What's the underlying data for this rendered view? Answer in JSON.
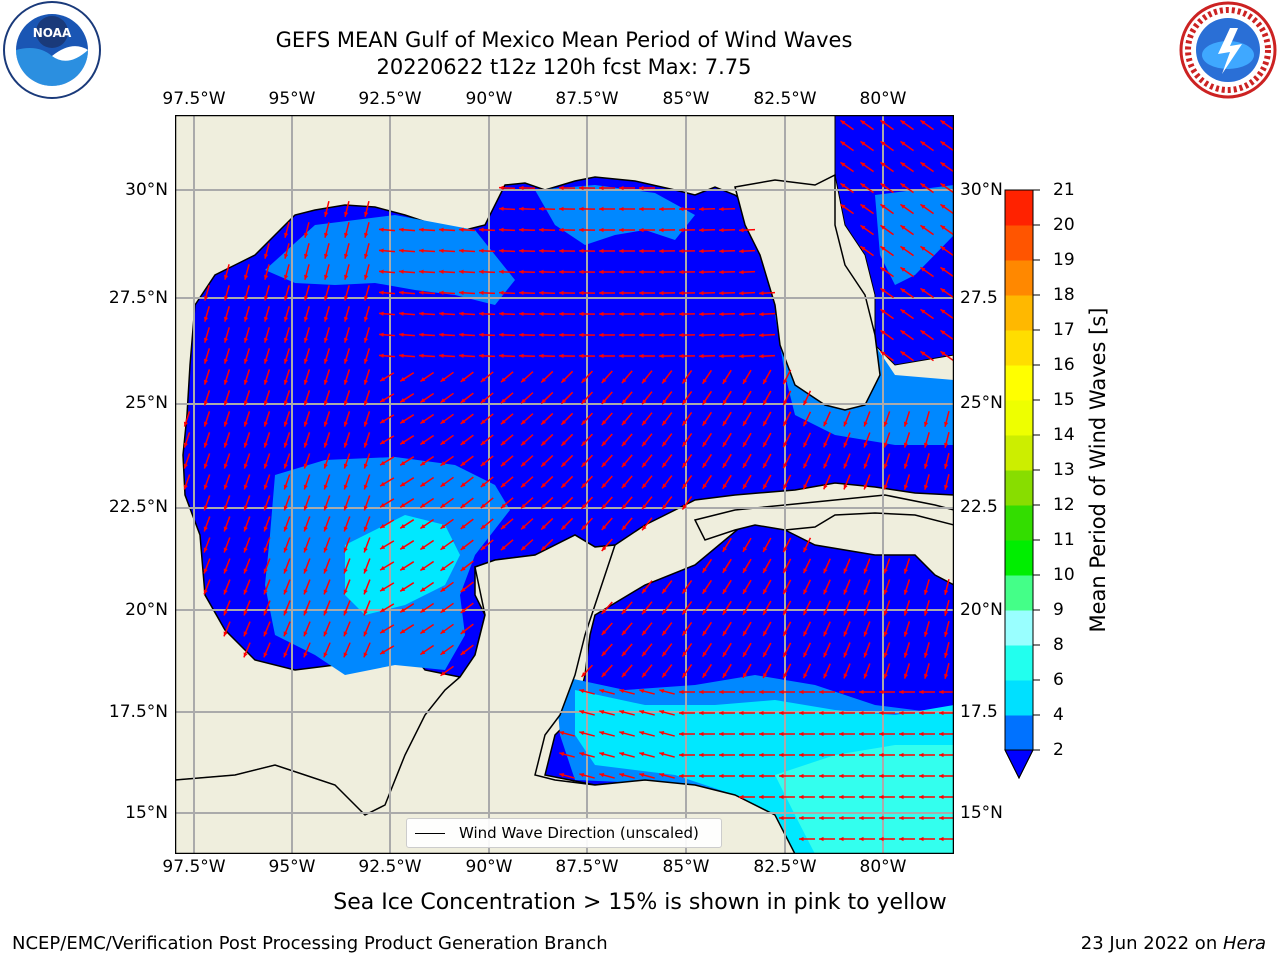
{
  "title": {
    "line1": "GEFS MEAN Gulf of Mexico Mean Period of Wind Waves",
    "line2": "20220622 t12z 120h fcst   Max: 7.75"
  },
  "logos": {
    "left": "noara-logo",
    "right": "nws-logo"
  },
  "map": {
    "lon_ticks": [
      "97.5°W",
      "95°W",
      "92.5°W",
      "90°W",
      "87.5°W",
      "85°W",
      "82.5°W",
      "80°W"
    ],
    "lat_ticks_left": [
      "30°N",
      "27.5°N",
      "25°N",
      "22.5°N",
      "20°N",
      "17.5°N",
      "15°N"
    ],
    "lat_ticks_right": [
      "30°N",
      "27.5",
      "25°N",
      "22.5",
      "20°N",
      "17.5",
      "15°N"
    ],
    "extent": {
      "lon_min": -98.0,
      "lon_max": -78.2,
      "lat_min": 14.0,
      "lat_max": 31.8
    },
    "colors": {
      "land": "#efeedd",
      "ocean_2_4": "#0000ff",
      "ocean_4_6": "#0088ff",
      "ocean_6_8": "#00e8ff",
      "arrow": "#ff0000"
    }
  },
  "legend": {
    "label": "Wind Wave Direction (unscaled)"
  },
  "colorbar": {
    "label": "Mean Period of Wind Waves [s]",
    "ticks": [
      "2",
      "4",
      "6",
      "8",
      "9",
      "10",
      "11",
      "12",
      "13",
      "14",
      "15",
      "16",
      "17",
      "18",
      "19",
      "20",
      "21"
    ],
    "colors": [
      "#0072ff",
      "#00e0ff",
      "#22ffee",
      "#99ffff",
      "#44ff88",
      "#00ee00",
      "#33dd00",
      "#88dd00",
      "#ccee00",
      "#eeff00",
      "#ffff00",
      "#ffdd00",
      "#ffb800",
      "#ff8800",
      "#ff5500",
      "#ff2200",
      "#ff0000"
    ],
    "extend_min_color": "#0000ff"
  },
  "note": "Sea Ice Concentration > 15% is shown in pink to yellow",
  "footer": {
    "left": "NCEP/EMC/Verification Post Processing Product Generation Branch",
    "date": "23 Jun 2022 on ",
    "machine": "Hera"
  }
}
